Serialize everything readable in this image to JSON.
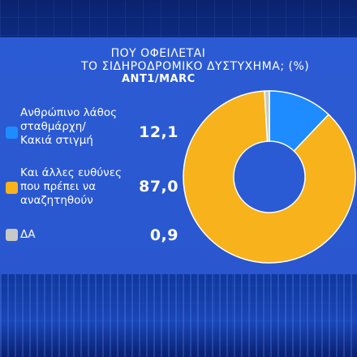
{
  "title_line1": "ΠΟΥ ΟΦΕΙΛΕΤΑΙ",
  "title_line2": "ΤΟ ΣΙΔΗΡΟΔΡΟΜΙΚΟ ΔΥΣΤΥΧΗΜΑ; (%)",
  "source": "ANT1/MARC",
  "colors": {
    "blue": "#1e8cff",
    "orange": "#f7b21c",
    "gray": "#c8c8c8",
    "hole": "#2b5bd4"
  },
  "legend": [
    {
      "lines": [
        "Ανθρώπινο λάθος",
        "σταθμάρχη/",
        "Κακιά στιγμή"
      ],
      "value": "12,1",
      "color": "#1e8cff"
    },
    {
      "lines": [
        "Και άλλες ευθύνες",
        "που πρέπει να",
        "αναζητηθούν"
      ],
      "value": "87,0",
      "color": "#f7b21c"
    },
    {
      "lines": [
        "ΔΑ"
      ],
      "value": "0,9",
      "color": "#c8c8c8"
    }
  ],
  "chart_data": {
    "type": "pie",
    "donut": true,
    "title": "ΠΟΥ ΟΦΕΙΛΕΤΑΙ ΤΟ ΣΙΔΗΡΟΔΡΟΜΙΚΟ ΔΥΣΤΥΧΗΜΑ; (%)",
    "categories": [
      "Ανθρώπινο λάθος σταθμάρχη/ Κακιά στιγμή",
      "Και άλλες ευθύνες που πρέπει να αναζητηθούν",
      "ΔΑ"
    ],
    "values": [
      12.1,
      87.0,
      0.9
    ],
    "colors": [
      "#1e8cff",
      "#f7b21c",
      "#c8c8c8"
    ],
    "legend_position": "left"
  }
}
